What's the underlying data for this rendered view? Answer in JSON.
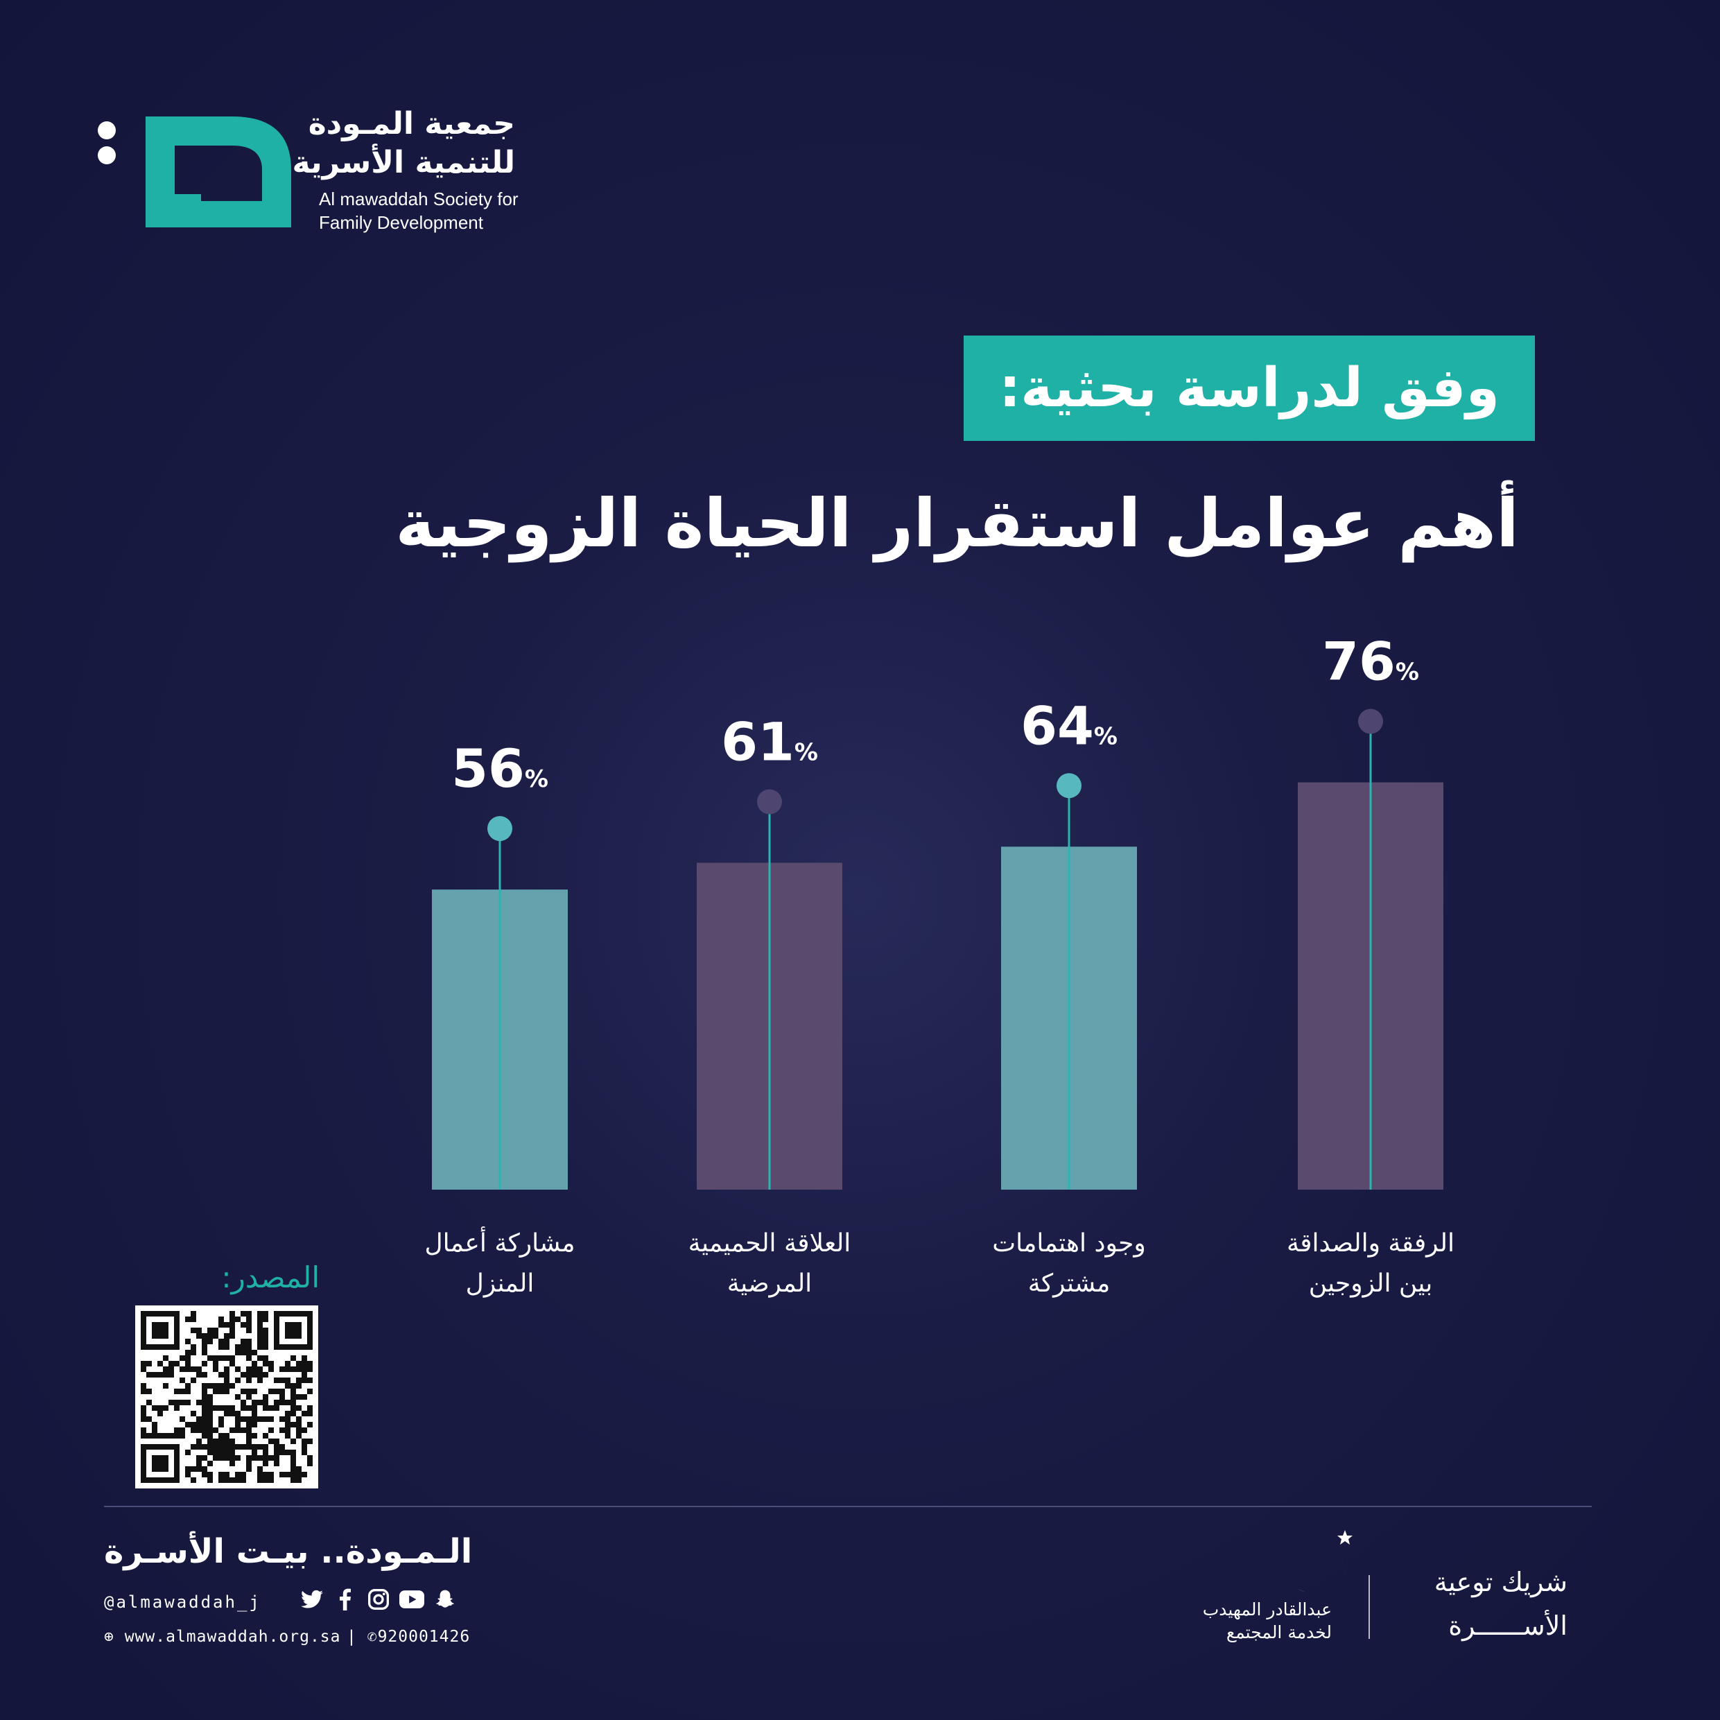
{
  "org": {
    "name_ar_line1": "جمعية المـودة",
    "name_ar_line2": "للتنمية الأسرية",
    "name_en_line1": "Al mawaddah Society for",
    "name_en_line2": "Family Development"
  },
  "heading": {
    "intro": "وفق لدراسة بحثية:",
    "title": "أهم عوامل استقرار الحياة الزوجية"
  },
  "chart_data": {
    "type": "bar",
    "title": "أهم عوامل استقرار الحياة الزوجية",
    "categories": [
      [
        "الرفقة والصداقة",
        "بين الزوجين"
      ],
      [
        "وجود اهتمامات",
        "مشتركة"
      ],
      [
        "العلاقة الحميمية",
        "المرضية"
      ],
      [
        "مشاركة أعمال",
        "المنزل"
      ]
    ],
    "values": [
      76,
      64,
      61,
      56
    ],
    "value_suffix": "%",
    "bar_colors": [
      "#5a4a6e",
      "#64a3ae",
      "#5a4a6e",
      "#64a3ae"
    ],
    "dot_colors": [
      "#4e4670",
      "#58b8c0",
      "#4e4670",
      "#58b8c0"
    ],
    "stem_color": "#2ab5b0",
    "ylim": [
      0,
      100
    ],
    "grid": false,
    "legend": "none"
  },
  "source": {
    "label": "المصدر:"
  },
  "footer": {
    "slogan": "الـمـودة.. بيـت الأسـرة",
    "handle": "@almawaddah_j",
    "website": "www.almawaddah.org.sa",
    "phone": "920001426",
    "partner_name_line1": "عبدالقادر المهيدب",
    "partner_name_line2": "لخدمة المجتمع",
    "partner_tag_line1": "شريك توعية",
    "partner_tag_line2": "الأســــــرة",
    "social_icons": [
      "snapchat-icon",
      "youtube-icon",
      "instagram-icon",
      "facebook-icon",
      "twitter-icon"
    ]
  },
  "colors": {
    "accent": "#1fb0a6",
    "background": "#1a1c45",
    "bar_purple": "#5a4a6e",
    "bar_teal": "#64a3ae"
  }
}
